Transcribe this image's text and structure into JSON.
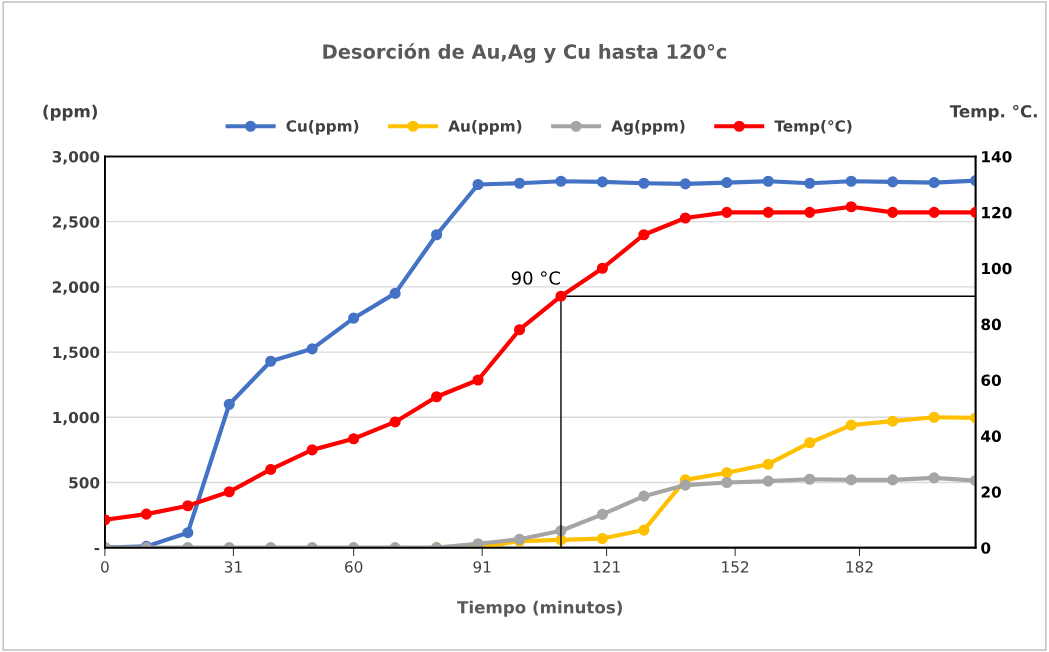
{
  "chart_data": {
    "type": "line",
    "title": "Desorción de Au,Ag y Cu hasta 120°c",
    "xlabel": "Tiempo (minutos)",
    "ylabel": "(ppm)",
    "y2label": "Temp. °C.",
    "x": [
      0,
      10,
      20,
      30,
      40,
      50,
      60,
      70,
      80,
      90,
      100,
      110,
      120,
      130,
      140,
      150,
      160,
      170,
      180,
      190,
      200,
      210
    ],
    "series": [
      {
        "name": "Cu(ppm)",
        "color": "#4472c4",
        "values": [
          0,
          10,
          115,
          1100,
          1430,
          1525,
          1760,
          1950,
          2400,
          2785,
          2795,
          2810,
          2805,
          2795,
          2790,
          2800,
          2810,
          2795,
          2810,
          2805,
          2800,
          2815
        ]
      },
      {
        "name": "Au(ppm)",
        "color": "#ffc000",
        "values": [
          null,
          null,
          null,
          null,
          null,
          null,
          null,
          null,
          0,
          0,
          50,
          60,
          70,
          135,
          520,
          575,
          640,
          805,
          940,
          970,
          1000,
          995
        ]
      },
      {
        "name": "Ag(ppm)",
        "color": "#a5a5a5",
        "values": [
          0,
          0,
          0,
          0,
          0,
          0,
          0,
          0,
          0,
          30,
          65,
          130,
          255,
          395,
          480,
          500,
          510,
          525,
          520,
          520,
          535,
          515
        ]
      },
      {
        "name": "Temp(°C)",
        "color": "#ff0000",
        "axis": "y2",
        "values": [
          10,
          12,
          15,
          20,
          28,
          35,
          39,
          45,
          54,
          60,
          78,
          90,
          100,
          112,
          118,
          120,
          120,
          120,
          122,
          120,
          120,
          120
        ]
      }
    ],
    "xlim": [
      0,
      210
    ],
    "xticks": [
      0,
      31,
      60,
      91,
      121,
      152,
      182
    ],
    "ylim": [
      0,
      3000
    ],
    "yticks": [
      {
        "value": 0,
        "label": "-"
      },
      500,
      {
        "value": 1000,
        "label": "1,000"
      },
      {
        "value": 1500,
        "label": "1,500"
      },
      {
        "value": 2000,
        "label": "2,000"
      },
      {
        "value": 2500,
        "label": "2,500"
      },
      {
        "value": 3000,
        "label": "3,000"
      }
    ],
    "y2lim": [
      0,
      140
    ],
    "y2ticks": [
      0,
      20,
      40,
      60,
      80,
      100,
      120,
      140
    ],
    "ref_lines": [
      {
        "axis": "y2",
        "value": 90,
        "label": "90 °C",
        "color": "#000000"
      },
      {
        "axis": "x",
        "value": 110,
        "color": "#000000"
      }
    ],
    "grid": "y",
    "legend": "top",
    "marker": "circle",
    "line_style": "solid"
  }
}
